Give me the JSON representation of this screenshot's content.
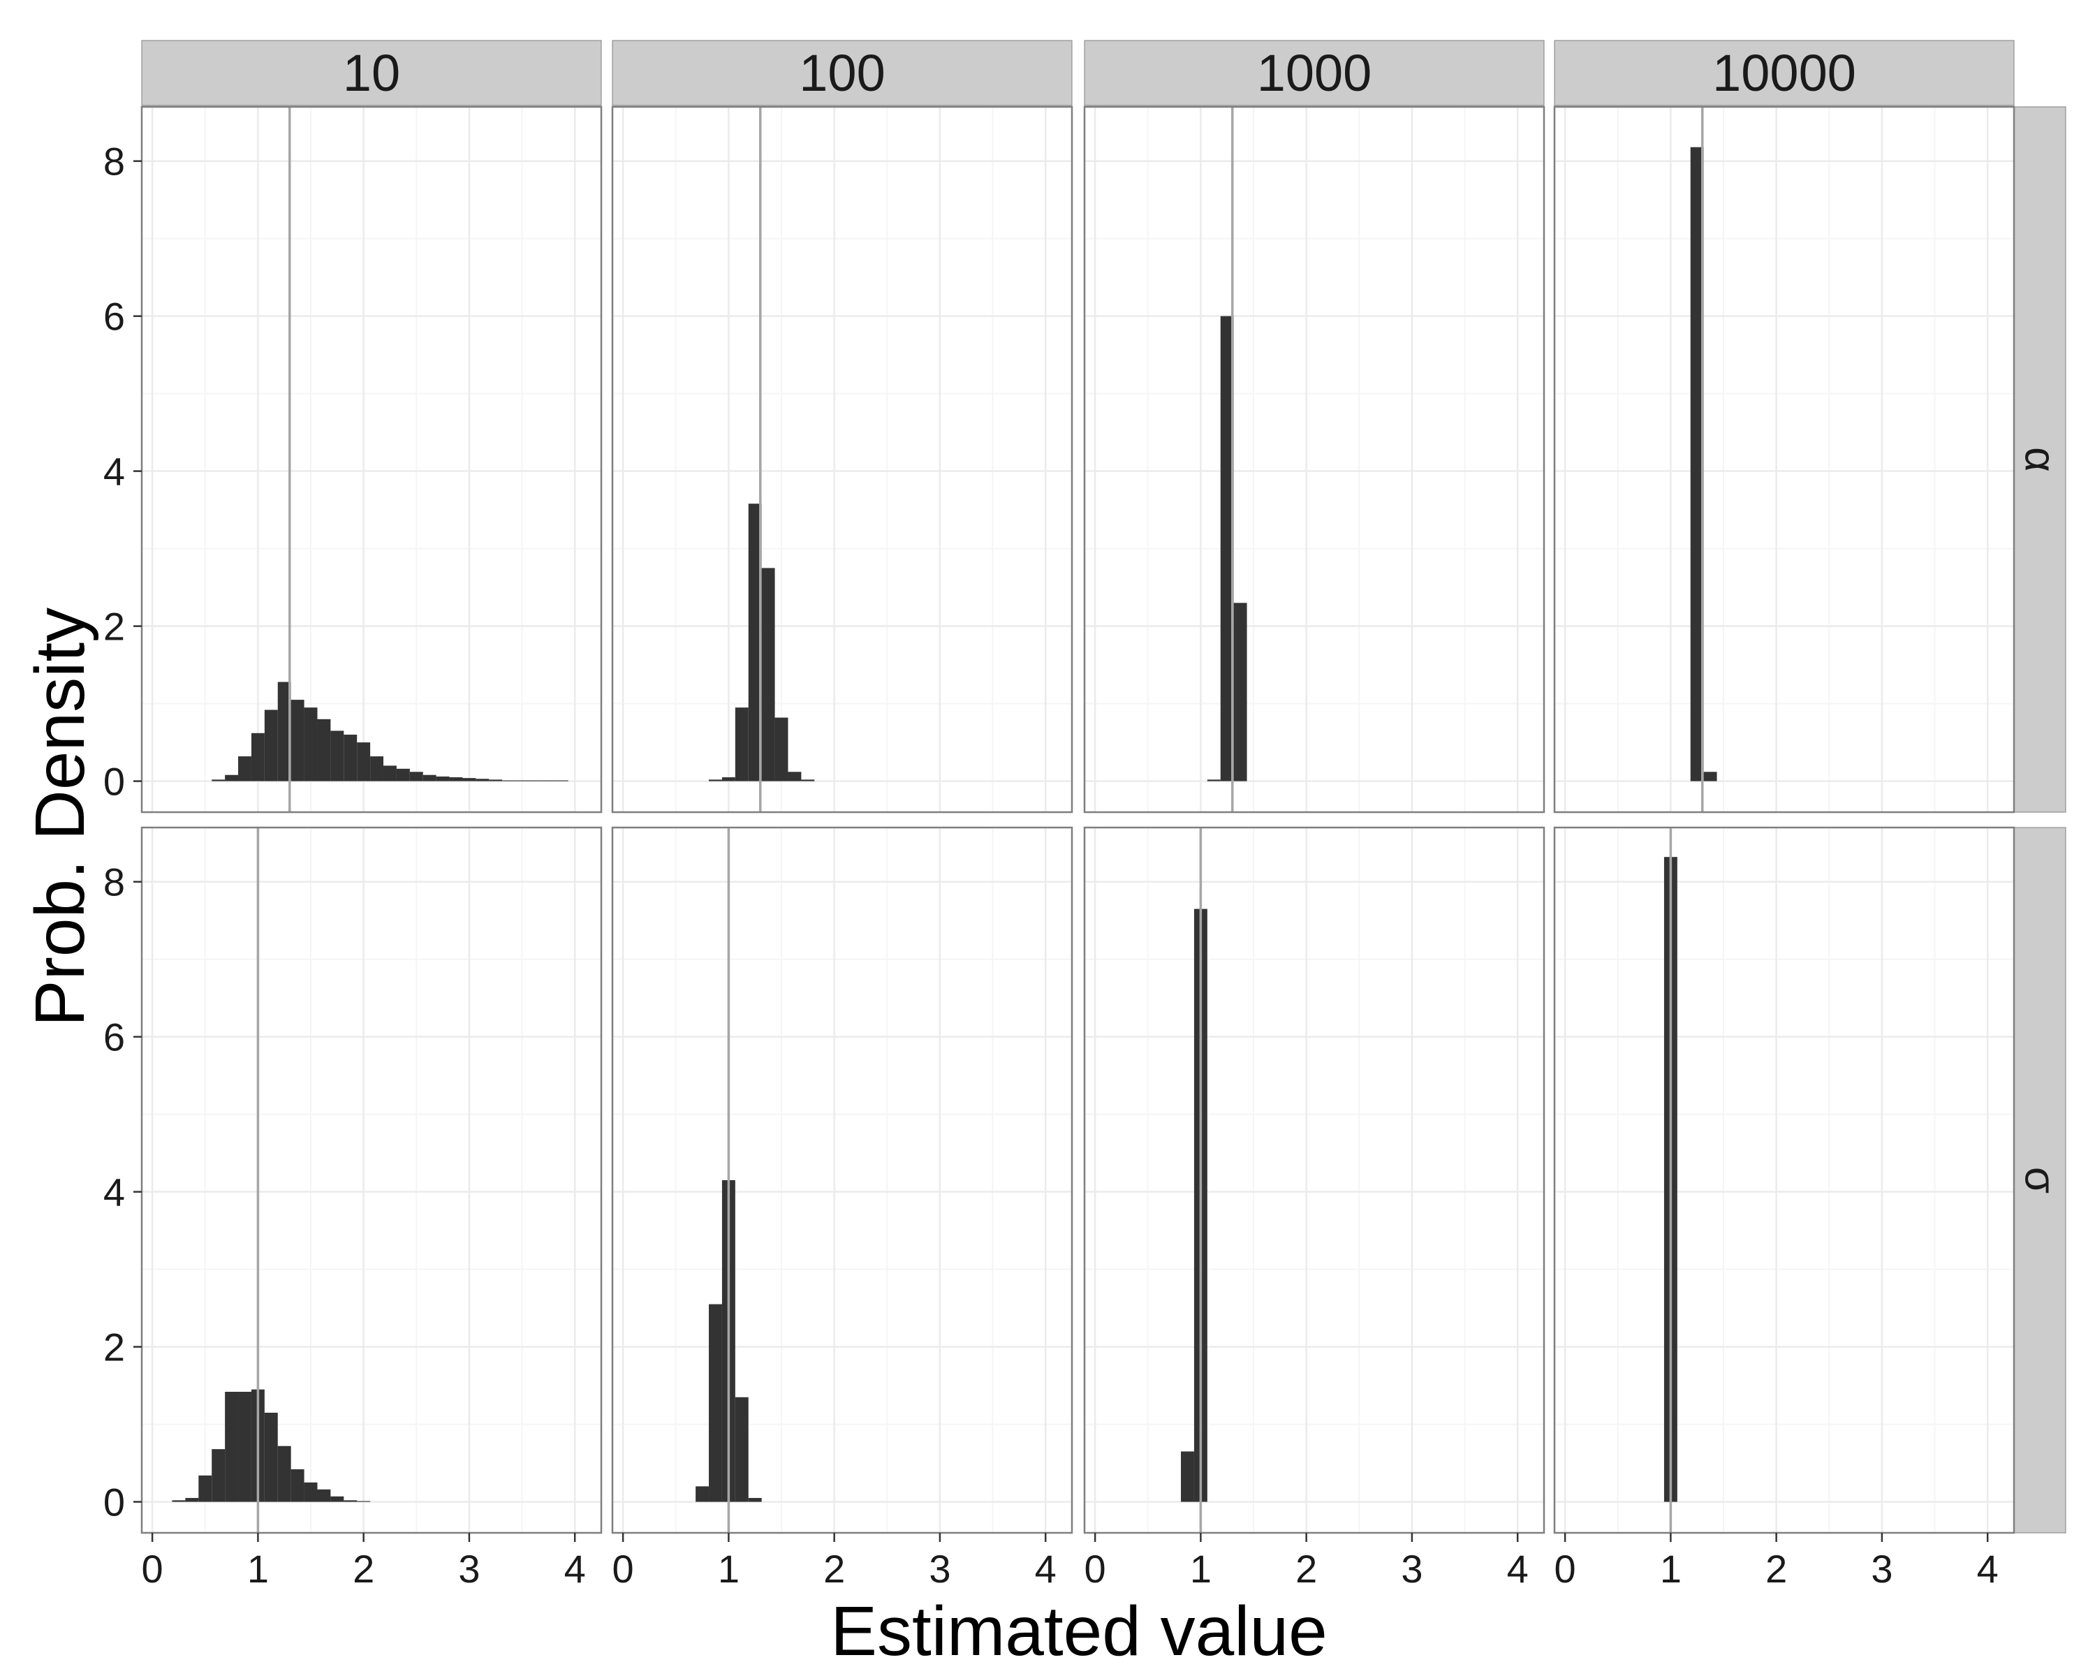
{
  "chart_data": {
    "type": "bar",
    "xlabel": "Estimated value",
    "ylabel": "Prob. Density",
    "xlim": [
      -0.1,
      4.25
    ],
    "ylim": [
      -0.4,
      8.7
    ],
    "x_ticks": [
      0,
      1,
      2,
      3,
      4
    ],
    "y_ticks": [
      0,
      2,
      4,
      6,
      8
    ],
    "grid": true,
    "bin_width": 0.125,
    "column_facets": [
      "10",
      "100",
      "1000",
      "10000"
    ],
    "row_facets": [
      "α",
      "σ"
    ],
    "reference_lines": {
      "α": 1.3,
      "σ": 1.0
    },
    "panels": [
      {
        "row": "α",
        "col": "10",
        "bins_x": [
          0.625,
          0.75,
          0.875,
          1.0,
          1.125,
          1.25,
          1.375,
          1.5,
          1.625,
          1.75,
          1.875,
          2.0,
          2.125,
          2.25,
          2.375,
          2.5,
          2.625,
          2.75,
          2.875,
          3.0,
          3.125,
          3.25,
          3.375,
          3.5,
          3.625,
          3.75,
          3.875
        ],
        "values": [
          0.02,
          0.08,
          0.32,
          0.62,
          0.92,
          1.28,
          1.05,
          0.95,
          0.8,
          0.65,
          0.6,
          0.5,
          0.32,
          0.2,
          0.16,
          0.12,
          0.08,
          0.06,
          0.05,
          0.04,
          0.03,
          0.02,
          0.01,
          0.01,
          0.01,
          0.01,
          0.01
        ]
      },
      {
        "row": "α",
        "col": "100",
        "bins_x": [
          0.875,
          1.0,
          1.125,
          1.25,
          1.375,
          1.5,
          1.625,
          1.75
        ],
        "values": [
          0.02,
          0.05,
          0.95,
          3.58,
          2.75,
          0.82,
          0.12,
          0.02
        ]
      },
      {
        "row": "α",
        "col": "1000",
        "bins_x": [
          1.125,
          1.25,
          1.375
        ],
        "values": [
          0.02,
          6.0,
          2.3
        ]
      },
      {
        "row": "α",
        "col": "10000",
        "bins_x": [
          1.25,
          1.375
        ],
        "values": [
          8.18,
          0.12
        ]
      },
      {
        "row": "σ",
        "col": "10",
        "bins_x": [
          0.25,
          0.375,
          0.5,
          0.625,
          0.75,
          0.875,
          1.0,
          1.125,
          1.25,
          1.375,
          1.5,
          1.625,
          1.75,
          1.875,
          2.0
        ],
        "values": [
          0.02,
          0.05,
          0.34,
          0.68,
          1.42,
          1.42,
          1.45,
          1.15,
          0.72,
          0.42,
          0.25,
          0.16,
          0.07,
          0.02,
          0.01
        ]
      },
      {
        "row": "σ",
        "col": "100",
        "bins_x": [
          0.75,
          0.875,
          1.0,
          1.125,
          1.25
        ],
        "values": [
          0.2,
          2.55,
          4.15,
          1.35,
          0.05
        ]
      },
      {
        "row": "σ",
        "col": "1000",
        "bins_x": [
          0.875,
          1.0
        ],
        "values": [
          0.65,
          7.65
        ]
      },
      {
        "row": "σ",
        "col": "10000",
        "bins_x": [
          1.0
        ],
        "values": [
          8.32
        ]
      }
    ]
  },
  "colors": {
    "strip_bg": "#cccccc",
    "bar": "#333333",
    "ref_line": "#a6a6a6",
    "grid": "#ebebeb",
    "panel_border": "#7f7f7f",
    "axis_text": "#1a1a1a"
  }
}
